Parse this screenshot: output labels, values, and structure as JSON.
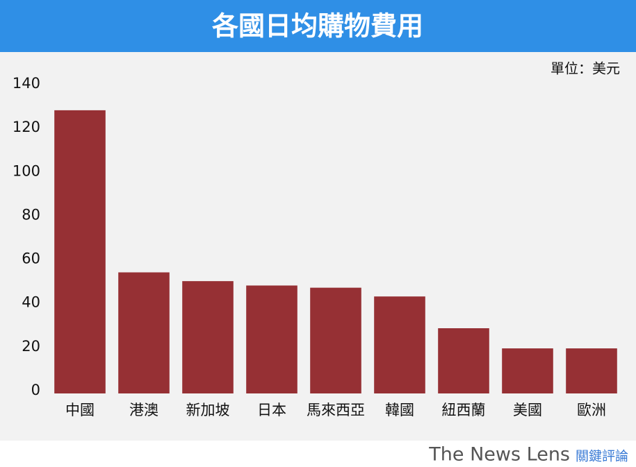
{
  "chart_data": {
    "type": "bar",
    "title": "各國日均購物費用",
    "unit": "單位：美元",
    "categories": [
      "中國",
      "港澳",
      "新加坡",
      "日本",
      "馬來西亞",
      "韓國",
      "紐西蘭",
      "美國",
      "歐洲"
    ],
    "values": [
      128,
      54,
      50,
      48,
      47,
      43,
      28.5,
      19.3,
      19.3
    ],
    "color": "#963034",
    "ylim": [
      0,
      140
    ],
    "yticks": [
      0,
      20,
      40,
      60,
      80,
      100,
      120,
      140
    ],
    "grid": false
  },
  "footer": {
    "brand": "The News Lens",
    "brand_zh": "關鍵評論"
  }
}
